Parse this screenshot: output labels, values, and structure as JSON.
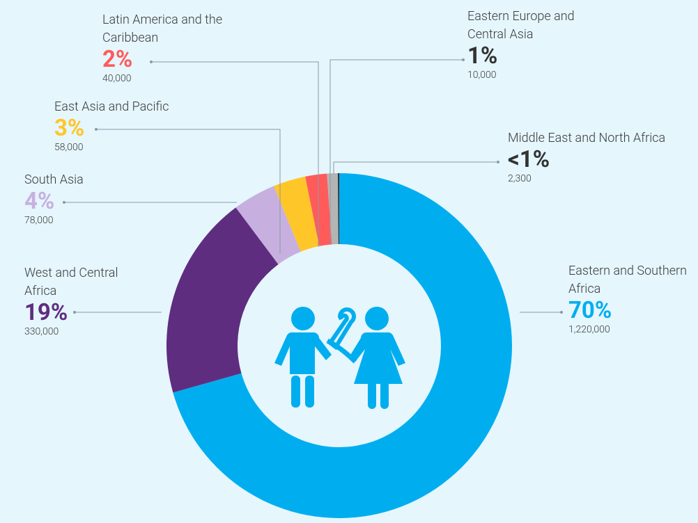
{
  "chart_data": {
    "type": "pie",
    "categories": [
      "Eastern and Southern Africa",
      "West and Central Africa",
      "South Asia",
      "East Asia and Pacific",
      "Latin America and the Caribbean",
      "Eastern Europe and Central Asia",
      "Middle East and North Africa"
    ],
    "values": [
      70,
      19,
      4,
      3,
      2,
      1,
      0.13
    ],
    "value_labels": [
      "70%",
      "19%",
      "4%",
      "3%",
      "2%",
      "1%",
      "<1%"
    ],
    "counts": [
      {
        "value": 1220000,
        "label": "1,220,000"
      },
      {
        "value": 330000,
        "label": "330,000"
      },
      {
        "value": 78000,
        "label": "78,000"
      },
      {
        "value": 58000,
        "label": "58,000"
      },
      {
        "value": 40000,
        "label": "40,000"
      },
      {
        "value": 10000,
        "label": "10,000"
      },
      {
        "value": 2300,
        "label": "2,300"
      }
    ],
    "colors": [
      "#00aeef",
      "#5f2d80",
      "#c7b0e0",
      "#ffc629",
      "#ff5b5b",
      "#b4b4b4",
      "#333333"
    ],
    "label_colors": [
      "#00aeef",
      "#5f2d80",
      "#c7b0e0",
      "#ffc629",
      "#ff5b5b",
      "#333333",
      "#333333"
    ],
    "donut": true
  }
}
